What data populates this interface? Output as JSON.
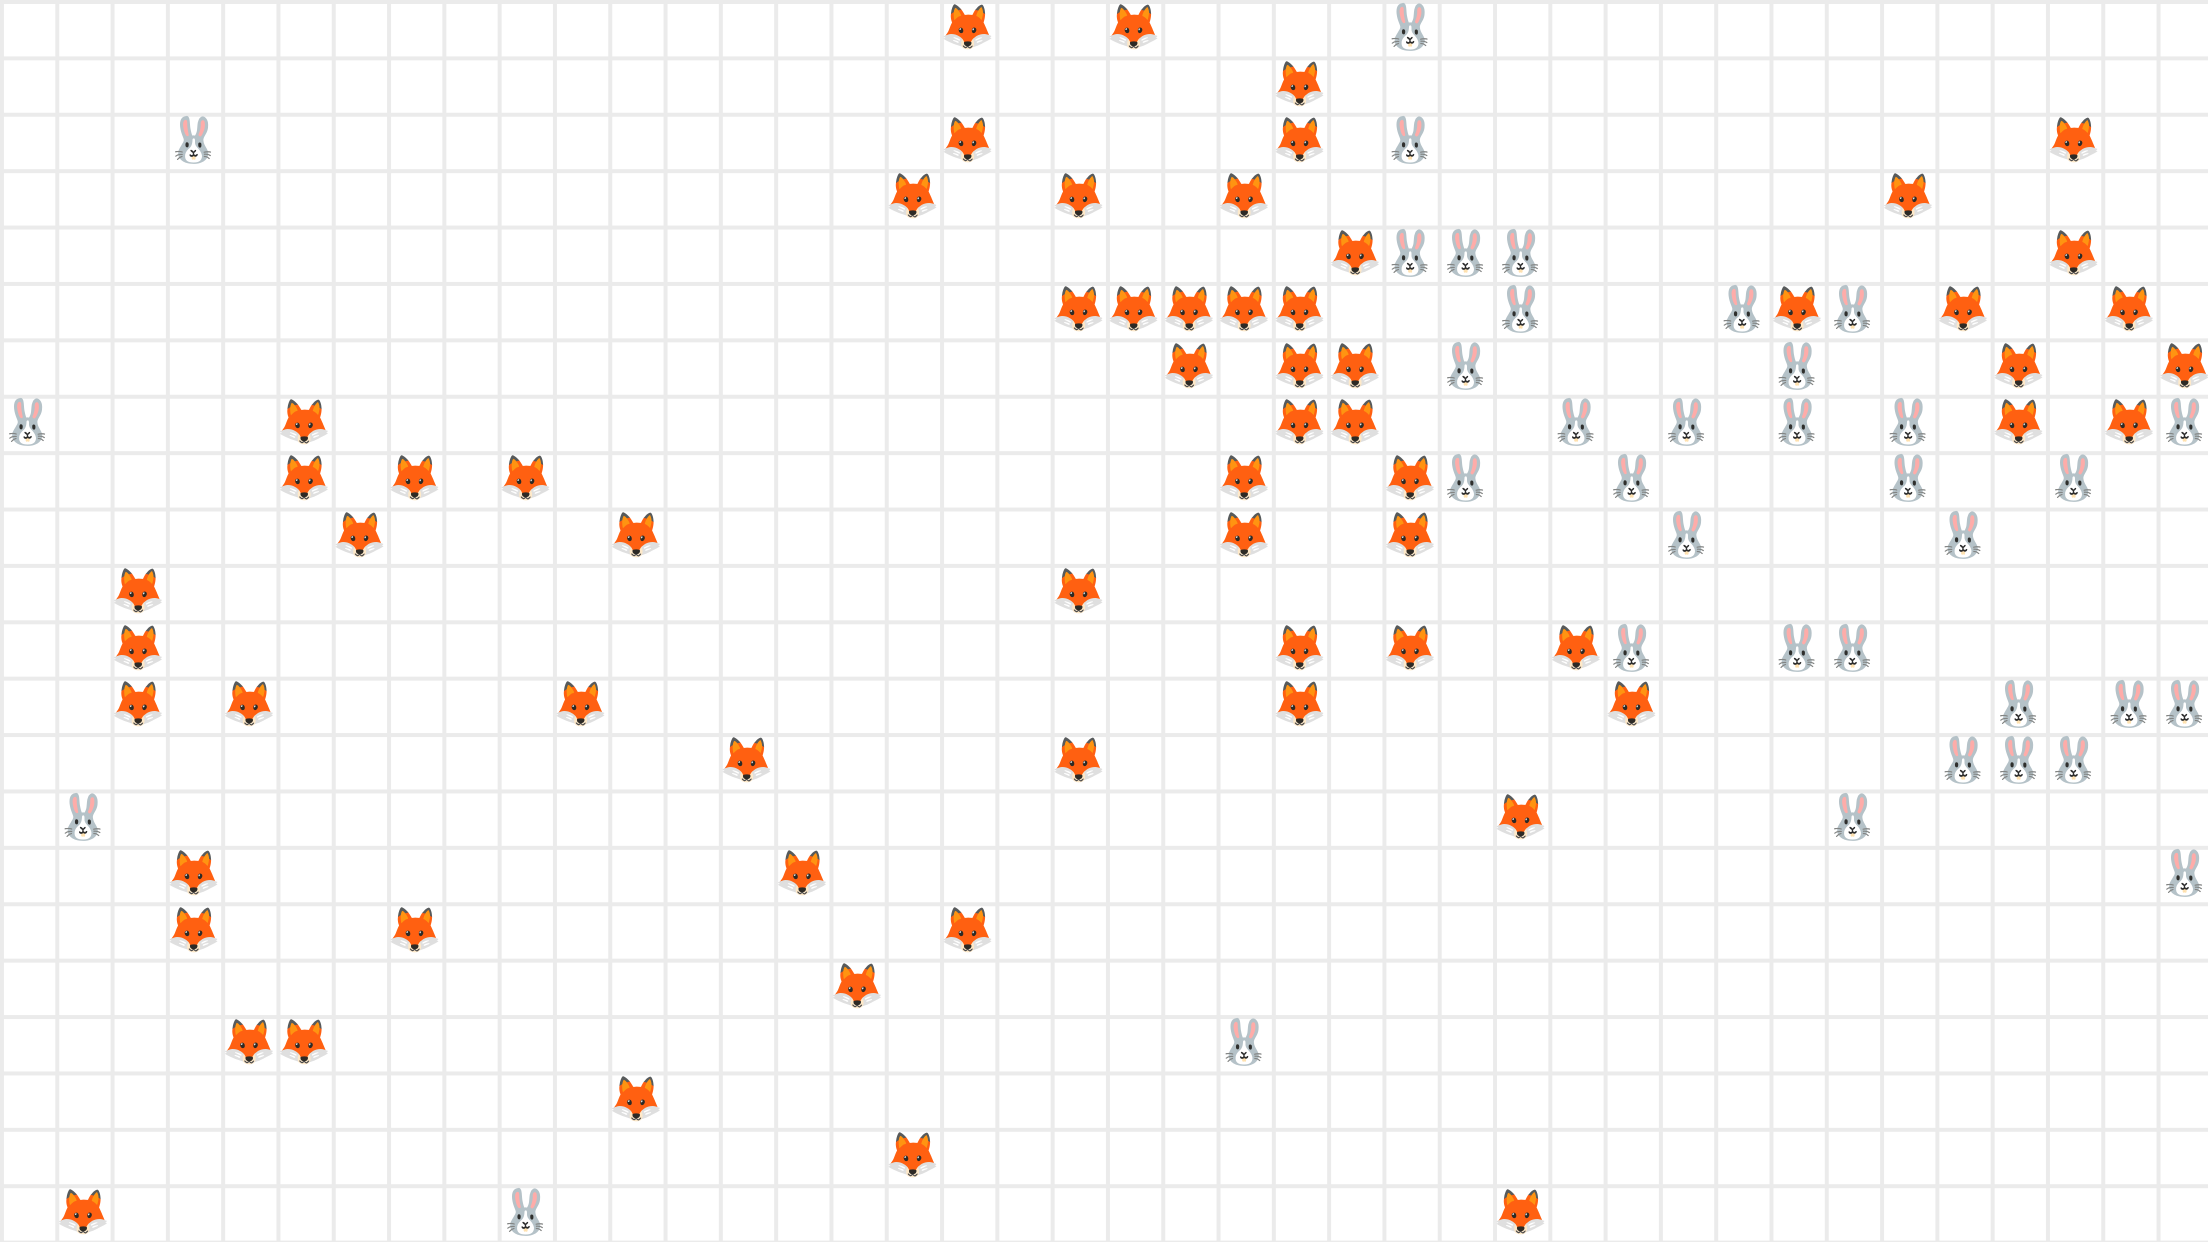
{
  "game": {
    "title": "",
    "grid": {
      "cols": 40,
      "rows": 22
    },
    "glyphs": {
      "fox": "🦊",
      "rabbit": "🐰"
    },
    "colors": {
      "grid_line": "#ebebeb",
      "background": "#ffffff",
      "fox": "#e8731e",
      "rabbit": "#a9a9ad"
    },
    "icon_names": {
      "fox": "fox-icon",
      "rabbit": "rabbit-icon"
    },
    "cells": [
      {
        "c": 17,
        "r": 0,
        "type": "fox"
      },
      {
        "c": 20,
        "r": 0,
        "type": "fox"
      },
      {
        "c": 25,
        "r": 0,
        "type": "rabbit"
      },
      {
        "c": 23,
        "r": 1,
        "type": "fox"
      },
      {
        "c": 3,
        "r": 2,
        "type": "rabbit"
      },
      {
        "c": 17,
        "r": 2,
        "type": "fox"
      },
      {
        "c": 23,
        "r": 2,
        "type": "fox"
      },
      {
        "c": 25,
        "r": 2,
        "type": "rabbit"
      },
      {
        "c": 37,
        "r": 2,
        "type": "fox"
      },
      {
        "c": 16,
        "r": 3,
        "type": "fox"
      },
      {
        "c": 19,
        "r": 3,
        "type": "fox"
      },
      {
        "c": 22,
        "r": 3,
        "type": "fox"
      },
      {
        "c": 34,
        "r": 3,
        "type": "fox"
      },
      {
        "c": 24,
        "r": 4,
        "type": "fox"
      },
      {
        "c": 25,
        "r": 4,
        "type": "rabbit"
      },
      {
        "c": 26,
        "r": 4,
        "type": "rabbit"
      },
      {
        "c": 27,
        "r": 4,
        "type": "rabbit"
      },
      {
        "c": 37,
        "r": 4,
        "type": "fox"
      },
      {
        "c": 19,
        "r": 5,
        "type": "fox"
      },
      {
        "c": 20,
        "r": 5,
        "type": "fox"
      },
      {
        "c": 21,
        "r": 5,
        "type": "fox"
      },
      {
        "c": 22,
        "r": 5,
        "type": "fox"
      },
      {
        "c": 23,
        "r": 5,
        "type": "fox"
      },
      {
        "c": 27,
        "r": 5,
        "type": "rabbit"
      },
      {
        "c": 31,
        "r": 5,
        "type": "rabbit"
      },
      {
        "c": 32,
        "r": 5,
        "type": "fox"
      },
      {
        "c": 33,
        "r": 5,
        "type": "rabbit"
      },
      {
        "c": 35,
        "r": 5,
        "type": "fox"
      },
      {
        "c": 38,
        "r": 5,
        "type": "fox"
      },
      {
        "c": 21,
        "r": 6,
        "type": "fox"
      },
      {
        "c": 23,
        "r": 6,
        "type": "fox"
      },
      {
        "c": 24,
        "r": 6,
        "type": "fox"
      },
      {
        "c": 26,
        "r": 6,
        "type": "rabbit"
      },
      {
        "c": 32,
        "r": 6,
        "type": "rabbit"
      },
      {
        "c": 36,
        "r": 6,
        "type": "fox"
      },
      {
        "c": 39,
        "r": 6,
        "type": "fox"
      },
      {
        "c": 0,
        "r": 7,
        "type": "rabbit"
      },
      {
        "c": 5,
        "r": 7,
        "type": "fox"
      },
      {
        "c": 23,
        "r": 7,
        "type": "fox"
      },
      {
        "c": 24,
        "r": 7,
        "type": "fox"
      },
      {
        "c": 28,
        "r": 7,
        "type": "rabbit"
      },
      {
        "c": 30,
        "r": 7,
        "type": "rabbit"
      },
      {
        "c": 32,
        "r": 7,
        "type": "rabbit"
      },
      {
        "c": 34,
        "r": 7,
        "type": "rabbit"
      },
      {
        "c": 36,
        "r": 7,
        "type": "fox"
      },
      {
        "c": 38,
        "r": 7,
        "type": "fox"
      },
      {
        "c": 39,
        "r": 7,
        "type": "rabbit"
      },
      {
        "c": 5,
        "r": 8,
        "type": "fox"
      },
      {
        "c": 7,
        "r": 8,
        "type": "fox"
      },
      {
        "c": 9,
        "r": 8,
        "type": "fox"
      },
      {
        "c": 22,
        "r": 8,
        "type": "fox"
      },
      {
        "c": 25,
        "r": 8,
        "type": "fox"
      },
      {
        "c": 26,
        "r": 8,
        "type": "rabbit"
      },
      {
        "c": 29,
        "r": 8,
        "type": "rabbit"
      },
      {
        "c": 34,
        "r": 8,
        "type": "rabbit"
      },
      {
        "c": 37,
        "r": 8,
        "type": "rabbit"
      },
      {
        "c": 6,
        "r": 9,
        "type": "fox"
      },
      {
        "c": 11,
        "r": 9,
        "type": "fox"
      },
      {
        "c": 22,
        "r": 9,
        "type": "fox"
      },
      {
        "c": 25,
        "r": 9,
        "type": "fox"
      },
      {
        "c": 30,
        "r": 9,
        "type": "rabbit"
      },
      {
        "c": 35,
        "r": 9,
        "type": "rabbit"
      },
      {
        "c": 2,
        "r": 10,
        "type": "fox"
      },
      {
        "c": 19,
        "r": 10,
        "type": "fox"
      },
      {
        "c": 2,
        "r": 11,
        "type": "fox"
      },
      {
        "c": 23,
        "r": 11,
        "type": "fox"
      },
      {
        "c": 25,
        "r": 11,
        "type": "fox"
      },
      {
        "c": 28,
        "r": 11,
        "type": "fox"
      },
      {
        "c": 29,
        "r": 11,
        "type": "rabbit"
      },
      {
        "c": 32,
        "r": 11,
        "type": "rabbit"
      },
      {
        "c": 33,
        "r": 11,
        "type": "rabbit"
      },
      {
        "c": 2,
        "r": 12,
        "type": "fox"
      },
      {
        "c": 4,
        "r": 12,
        "type": "fox"
      },
      {
        "c": 10,
        "r": 12,
        "type": "fox"
      },
      {
        "c": 23,
        "r": 12,
        "type": "fox"
      },
      {
        "c": 29,
        "r": 12,
        "type": "fox"
      },
      {
        "c": 36,
        "r": 12,
        "type": "rabbit"
      },
      {
        "c": 38,
        "r": 12,
        "type": "rabbit"
      },
      {
        "c": 39,
        "r": 12,
        "type": "rabbit"
      },
      {
        "c": 13,
        "r": 13,
        "type": "fox"
      },
      {
        "c": 19,
        "r": 13,
        "type": "fox"
      },
      {
        "c": 35,
        "r": 13,
        "type": "rabbit"
      },
      {
        "c": 36,
        "r": 13,
        "type": "rabbit"
      },
      {
        "c": 37,
        "r": 13,
        "type": "rabbit"
      },
      {
        "c": 1,
        "r": 14,
        "type": "rabbit"
      },
      {
        "c": 27,
        "r": 14,
        "type": "fox"
      },
      {
        "c": 33,
        "r": 14,
        "type": "rabbit"
      },
      {
        "c": 3,
        "r": 15,
        "type": "fox"
      },
      {
        "c": 14,
        "r": 15,
        "type": "fox"
      },
      {
        "c": 39,
        "r": 15,
        "type": "rabbit"
      },
      {
        "c": 3,
        "r": 16,
        "type": "fox"
      },
      {
        "c": 7,
        "r": 16,
        "type": "fox"
      },
      {
        "c": 17,
        "r": 16,
        "type": "fox"
      },
      {
        "c": 15,
        "r": 17,
        "type": "fox"
      },
      {
        "c": 4,
        "r": 18,
        "type": "fox"
      },
      {
        "c": 5,
        "r": 18,
        "type": "fox"
      },
      {
        "c": 22,
        "r": 18,
        "type": "rabbit"
      },
      {
        "c": 11,
        "r": 19,
        "type": "fox"
      },
      {
        "c": 16,
        "r": 20,
        "type": "fox"
      },
      {
        "c": 1,
        "r": 21,
        "type": "fox"
      },
      {
        "c": 9,
        "r": 21,
        "type": "rabbit"
      },
      {
        "c": 27,
        "r": 21,
        "type": "fox"
      }
    ]
  }
}
